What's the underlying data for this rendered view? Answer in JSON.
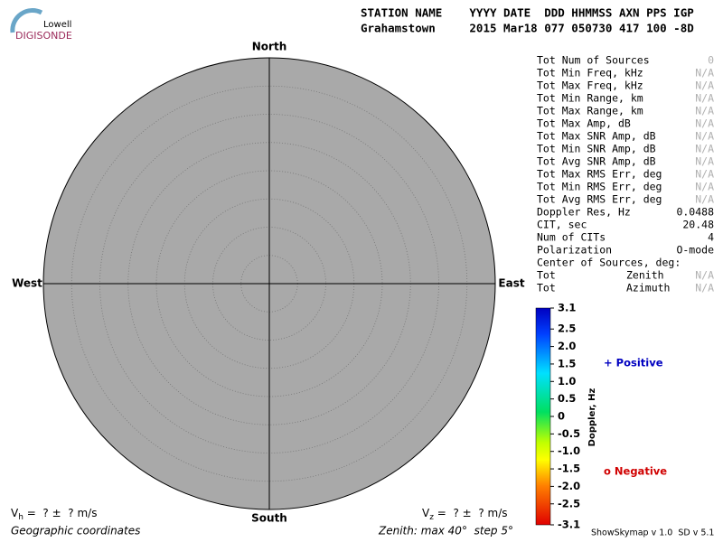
{
  "logo": {
    "top": "Lowell",
    "bottom": "DIGISONDE"
  },
  "header": {
    "line1": "STATION NAME    YYYY DATE  DDD HHMMSS AXN PPS IGP",
    "line2": "Grahamstown     2015 Mar18 077 050730 417 100 -8D"
  },
  "directions": {
    "north": "North",
    "south": "South",
    "west": "West",
    "east": "East"
  },
  "stats": [
    {
      "label": "Tot Num of Sources",
      "value": "0",
      "muted": true
    },
    {
      "label": "Tot Min Freq, kHz",
      "value": "N/A",
      "muted": true
    },
    {
      "label": "Tot Max Freq, kHz",
      "value": "N/A",
      "muted": true
    },
    {
      "label": "Tot Min Range, km",
      "value": "N/A",
      "muted": true
    },
    {
      "label": "Tot Max Range, km",
      "value": "N/A",
      "muted": true
    },
    {
      "label": "Tot Max Amp, dB",
      "value": "N/A",
      "muted": true
    },
    {
      "label": "Tot Max SNR Amp, dB",
      "value": "N/A",
      "muted": true
    },
    {
      "label": "Tot Min SNR Amp, dB",
      "value": "N/A",
      "muted": true
    },
    {
      "label": "Tot Avg SNR Amp, dB",
      "value": "N/A",
      "muted": true
    },
    {
      "label": "Tot Max RMS Err, deg",
      "value": "N/A",
      "muted": true
    },
    {
      "label": "Tot Min RMS Err, deg",
      "value": "N/A",
      "muted": true
    },
    {
      "label": "Tot Avg RMS Err, deg",
      "value": "N/A",
      "muted": true
    },
    {
      "label": "Doppler Res, Hz",
      "value": "0.0488",
      "muted": false
    },
    {
      "label": "CIT, sec",
      "value": "20.48",
      "muted": false
    },
    {
      "label": "Num of CITs",
      "value": "4",
      "muted": false
    },
    {
      "label": "Polarization",
      "value": "O-mode",
      "muted": false
    },
    {
      "label": "Center of Sources, deg:"
    },
    {
      "label": "Tot",
      "sublabel": "Zenith",
      "value": "N/A",
      "muted": true
    },
    {
      "label": "Tot",
      "sublabel": "Azimuth",
      "value": "N/A",
      "muted": true
    }
  ],
  "colorbar": {
    "label": "Doppler, Hz",
    "lim": [
      -3.1,
      3.1
    ],
    "ticks": [
      3.1,
      2.5,
      2.0,
      1.5,
      1.0,
      0.5,
      0,
      -0.5,
      -1.0,
      -1.5,
      -2.0,
      -2.5,
      -3.1
    ],
    "tick_labels": [
      "3.1",
      "2.5",
      "2.0",
      "1.5",
      "1.0",
      "0.5",
      "0",
      "-0.5",
      "-1.0",
      "-1.5",
      "-2.0",
      "-2.5",
      "-3.1"
    ]
  },
  "legend": {
    "positive": "+ Positive",
    "negative": "o Negative"
  },
  "footer": {
    "vh": {
      "symbol": "V",
      "sub": "h",
      "text": " =  ? ±  ? m/s"
    },
    "vz": {
      "symbol": "V",
      "sub": "z",
      "text": " =  ? ±  ? m/s"
    },
    "coords": "Geographic coordinates",
    "zenith": "Zenith: max 40°  step 5°",
    "version": "ShowSkymap v 1.0  SD v 5.1"
  }
}
